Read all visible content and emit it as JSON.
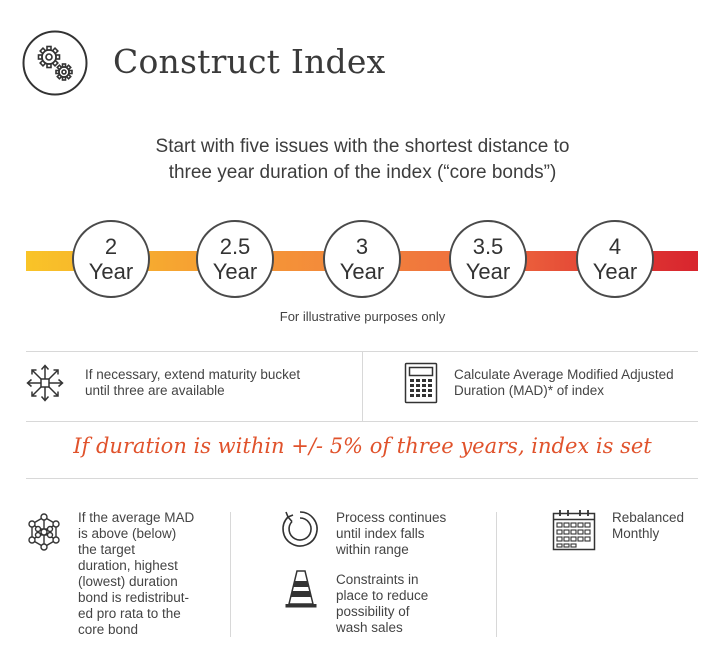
{
  "header": {
    "title": "Construct Index",
    "icon": "gears-icon"
  },
  "intro": {
    "line1": "Start with five issues with the shortest distance to",
    "line2": "three year duration of the index (“core bonds”)"
  },
  "timeline": {
    "gradient": [
      "#f9c428",
      "#f38a3b",
      "#d8252e"
    ],
    "nodes": [
      {
        "value": "2",
        "unit": "Year"
      },
      {
        "value": "2.5",
        "unit": "Year"
      },
      {
        "value": "3",
        "unit": "Year"
      },
      {
        "value": "3.5",
        "unit": "Year"
      },
      {
        "value": "4",
        "unit": "Year"
      }
    ],
    "disclaimer": "For illustrative purposes only"
  },
  "middle": {
    "left": {
      "icon": "expand-arrows-icon",
      "line1": "If necessary, extend maturity bucket",
      "line2": "until three are available"
    },
    "right": {
      "icon": "calculator-icon",
      "line1": "Calculate Average Modified Adjusted",
      "line2": "Duration (MAD)* of index"
    }
  },
  "highlight": {
    "text": "If duration is within +/- 5% of three years, index is set",
    "color": "#e0522b"
  },
  "bottom": {
    "col1": {
      "icon": "network-icon",
      "lines": [
        "If the average MAD",
        "is above (below)",
        "the target",
        "duration, highest",
        "(lowest) duration",
        "bond is redistribut-",
        "ed pro rata to the",
        "core bond"
      ]
    },
    "col2a": {
      "icon": "cycle-arrow-icon",
      "lines": [
        "Process continues",
        "until index falls",
        "within range"
      ]
    },
    "col2b": {
      "icon": "traffic-cone-icon",
      "lines": [
        "Constraints in",
        "place to reduce",
        "possibility of",
        "wash sales"
      ]
    },
    "col3": {
      "icon": "calendar-icon",
      "lines": [
        "Rebalanced",
        "Monthly"
      ]
    }
  }
}
